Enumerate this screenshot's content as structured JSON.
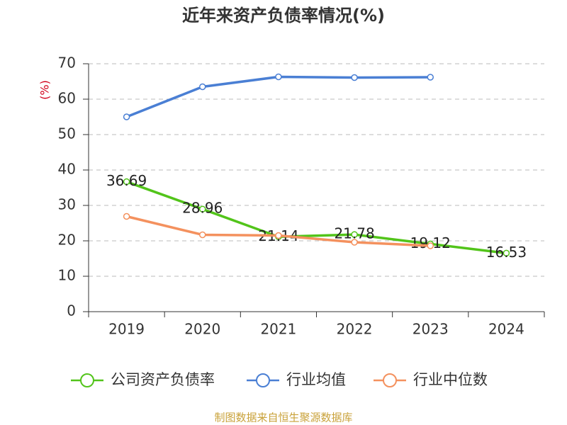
{
  "chart_data": {
    "type": "line",
    "title": "近年来资产负债率情况(%)",
    "y_label": "(%)",
    "source": "制图数据来自恒生聚源数据库",
    "categories": [
      "2019",
      "2020",
      "2021",
      "2022",
      "2023",
      "2024"
    ],
    "series": [
      {
        "name": "公司资产负债率",
        "color": "#52c41a",
        "values": [
          36.69,
          28.96,
          21.14,
          21.78,
          19.12,
          16.53
        ],
        "data_labels": true
      },
      {
        "name": "行业均值",
        "color": "#4a7fd4",
        "values": [
          55,
          63.5,
          66.3,
          66.1,
          66.2,
          null
        ]
      },
      {
        "name": "行业中位数",
        "color": "#f4915e",
        "values": [
          26.9,
          21.7,
          21.5,
          19.6,
          18.6,
          null
        ]
      }
    ],
    "ylim": [
      0,
      70
    ],
    "yticks": [
      0,
      10,
      20,
      30,
      40,
      50,
      60,
      70
    ],
    "grid": true,
    "legend": "bottom"
  }
}
